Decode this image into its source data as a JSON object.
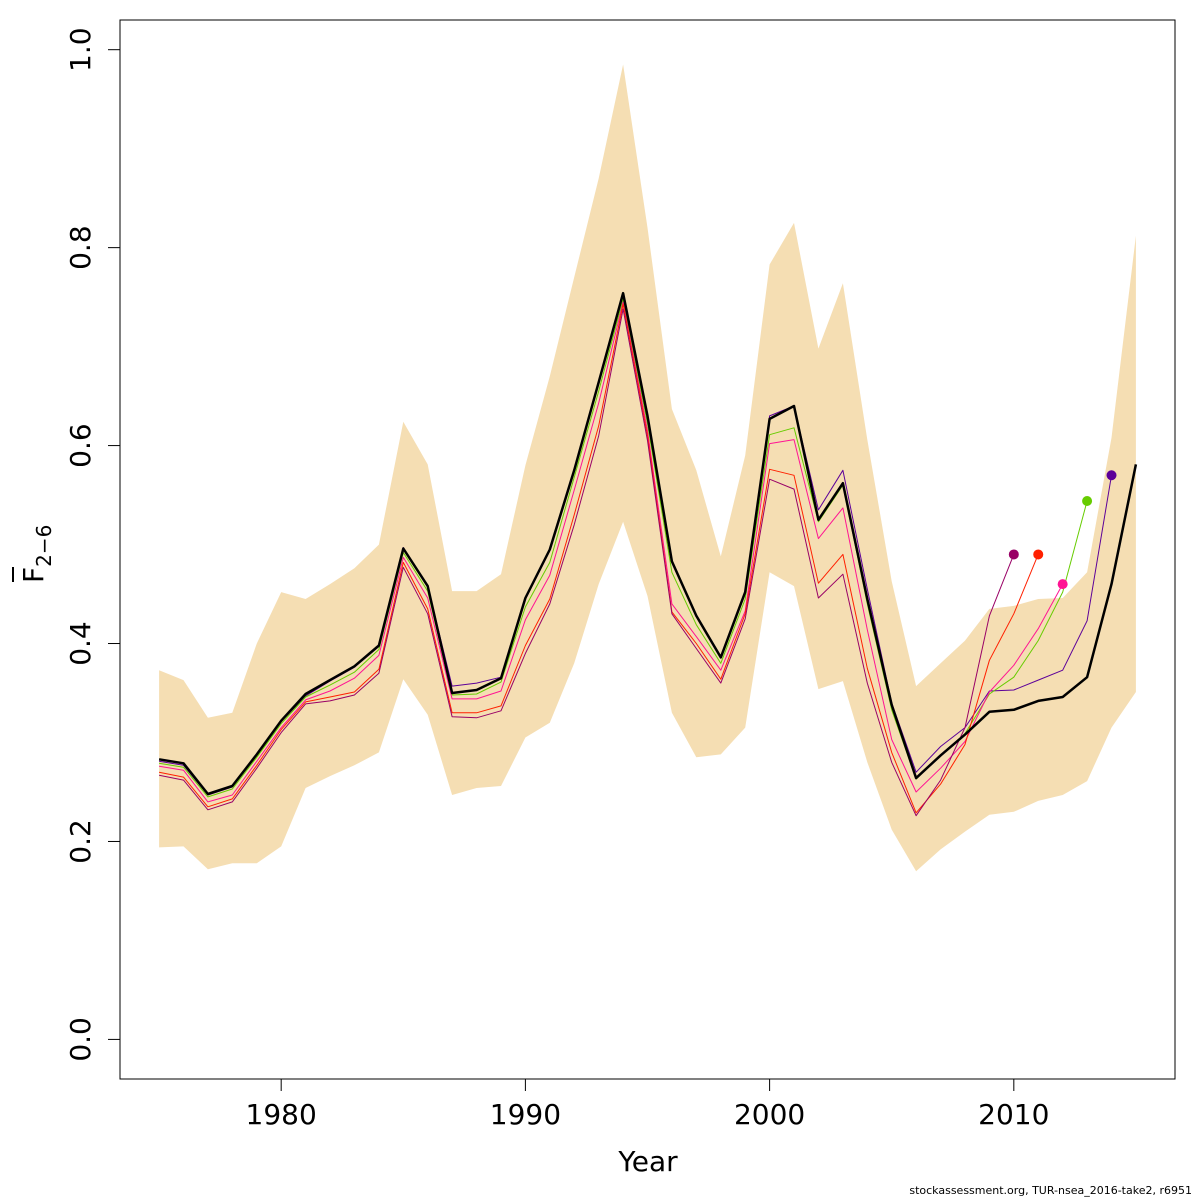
{
  "chart_data": {
    "type": "line",
    "title": "",
    "xlabel": "Year",
    "ylabel_main": "F",
    "ylabel_sub": "2−6",
    "xlim": [
      1973.4,
      2016.6
    ],
    "ylim": [
      -0.04,
      1.03
    ],
    "xticks": [
      1980,
      1990,
      2000,
      2010
    ],
    "yticks": [
      0.0,
      0.2,
      0.4,
      0.6,
      0.8,
      1.0
    ],
    "ytick_labels": [
      "0.0",
      "0.2",
      "0.4",
      "0.6",
      "0.8",
      "1.0"
    ],
    "grid": false,
    "band": {
      "color": "#f5deb3",
      "x": [
        1975,
        1976,
        1977,
        1978,
        1979,
        1980,
        1981,
        1982,
        1983,
        1984,
        1985,
        1986,
        1987,
        1988,
        1989,
        1990,
        1991,
        1992,
        1993,
        1994,
        1995,
        1996,
        1997,
        1998,
        1999,
        2000,
        2001,
        2002,
        2003,
        2004,
        2005,
        2006,
        2007,
        2008,
        2009,
        2010,
        2011,
        2012,
        2013,
        2014,
        2015
      ],
      "upper": [
        0.373,
        0.363,
        0.325,
        0.33,
        0.4,
        0.452,
        0.445,
        0.46,
        0.476,
        0.5,
        0.624,
        0.581,
        0.453,
        0.453,
        0.47,
        0.58,
        0.67,
        0.77,
        0.87,
        0.985,
        0.82,
        0.637,
        0.575,
        0.488,
        0.59,
        0.783,
        0.825,
        0.698,
        0.764,
        0.606,
        0.463,
        0.357,
        0.38,
        0.403,
        0.435,
        0.438,
        0.445,
        0.446,
        0.472,
        0.608,
        0.812
      ],
      "lower": [
        0.194,
        0.195,
        0.172,
        0.178,
        0.178,
        0.195,
        0.254,
        0.266,
        0.277,
        0.29,
        0.364,
        0.328,
        0.247,
        0.254,
        0.256,
        0.305,
        0.32,
        0.38,
        0.46,
        0.523,
        0.448,
        0.33,
        0.285,
        0.288,
        0.315,
        0.472,
        0.458,
        0.354,
        0.362,
        0.28,
        0.212,
        0.17,
        0.192,
        0.21,
        0.227,
        0.23,
        0.241,
        0.247,
        0.261,
        0.315,
        0.351
      ]
    },
    "series": [
      {
        "color": "#000000",
        "width": 2.5,
        "end_point": false,
        "x": [
          1975,
          1976,
          1977,
          1978,
          1979,
          1980,
          1981,
          1982,
          1983,
          1984,
          1985,
          1986,
          1987,
          1988,
          1989,
          1990,
          1991,
          1992,
          1993,
          1994,
          1995,
          1996,
          1997,
          1998,
          1999,
          2000,
          2001,
          2002,
          2003,
          2004,
          2005,
          2006,
          2007,
          2008,
          2009,
          2010,
          2011,
          2012,
          2013,
          2014,
          2015
        ],
        "values": [
          0.283,
          0.279,
          0.248,
          0.256,
          0.288,
          0.322,
          0.349,
          0.363,
          0.377,
          0.398,
          0.496,
          0.458,
          0.35,
          0.353,
          0.365,
          0.446,
          0.495,
          0.575,
          0.664,
          0.754,
          0.63,
          0.483,
          0.428,
          0.386,
          0.452,
          0.627,
          0.64,
          0.525,
          0.562,
          0.445,
          0.338,
          0.264,
          0.287,
          0.308,
          0.331,
          0.333,
          0.342,
          0.346,
          0.366,
          0.46,
          0.581
        ]
      },
      {
        "color": "#5c0099",
        "width": 1,
        "end_point": true,
        "x": [
          1975,
          1976,
          1977,
          1978,
          1979,
          1980,
          1981,
          1982,
          1983,
          1984,
          1985,
          1986,
          1987,
          1988,
          1989,
          1990,
          1991,
          1992,
          1993,
          1994,
          1995,
          1996,
          1997,
          1998,
          1999,
          2000,
          2001,
          2002,
          2003,
          2004,
          2005,
          2006,
          2007,
          2008,
          2009,
          2010,
          2011,
          2012,
          2013,
          2014
        ],
        "values": [
          0.281,
          0.277,
          0.247,
          0.255,
          0.287,
          0.321,
          0.347,
          0.362,
          0.376,
          0.397,
          0.497,
          0.458,
          0.357,
          0.36,
          0.366,
          0.446,
          0.494,
          0.574,
          0.663,
          0.753,
          0.631,
          0.484,
          0.429,
          0.387,
          0.452,
          0.63,
          0.64,
          0.535,
          0.575,
          0.455,
          0.34,
          0.27,
          0.296,
          0.315,
          0.352,
          0.353,
          0.363,
          0.373,
          0.423,
          0.57
        ]
      },
      {
        "color": "#66cc00",
        "width": 1,
        "end_point": true,
        "x": [
          1975,
          1976,
          1977,
          1978,
          1979,
          1980,
          1981,
          1982,
          1983,
          1984,
          1985,
          1986,
          1987,
          1988,
          1989,
          1990,
          1991,
          1992,
          1993,
          1994,
          1995,
          1996,
          1997,
          1998,
          1999,
          2000,
          2001,
          2002,
          2003,
          2004,
          2005,
          2006,
          2007,
          2008,
          2009,
          2010,
          2011,
          2012,
          2013
        ],
        "values": [
          0.279,
          0.275,
          0.245,
          0.253,
          0.285,
          0.319,
          0.346,
          0.358,
          0.371,
          0.394,
          0.492,
          0.453,
          0.348,
          0.349,
          0.361,
          0.437,
          0.482,
          0.568,
          0.655,
          0.748,
          0.622,
          0.472,
          0.419,
          0.38,
          0.445,
          0.611,
          0.618,
          0.523,
          0.56,
          0.44,
          0.333,
          0.263,
          0.287,
          0.309,
          0.349,
          0.366,
          0.403,
          0.452,
          0.544
        ]
      },
      {
        "color": "#ff1493",
        "width": 1,
        "end_point": true,
        "x": [
          1975,
          1976,
          1977,
          1978,
          1979,
          1980,
          1981,
          1982,
          1983,
          1984,
          1985,
          1986,
          1987,
          1988,
          1989,
          1990,
          1991,
          1992,
          1993,
          1994,
          1995,
          1996,
          1997,
          1998,
          1999,
          2000,
          2001,
          2002,
          2003,
          2004,
          2005,
          2006,
          2007,
          2008,
          2009,
          2010,
          2011,
          2012
        ],
        "values": [
          0.276,
          0.272,
          0.24,
          0.247,
          0.281,
          0.315,
          0.343,
          0.352,
          0.365,
          0.388,
          0.487,
          0.446,
          0.344,
          0.344,
          0.352,
          0.424,
          0.469,
          0.555,
          0.643,
          0.745,
          0.615,
          0.44,
          0.407,
          0.373,
          0.433,
          0.602,
          0.606,
          0.506,
          0.537,
          0.414,
          0.303,
          0.25,
          0.274,
          0.301,
          0.351,
          0.378,
          0.415,
          0.46
        ]
      },
      {
        "color": "#ff2000",
        "width": 1,
        "end_point": true,
        "x": [
          1975,
          1976,
          1977,
          1978,
          1979,
          1980,
          1981,
          1982,
          1983,
          1984,
          1985,
          1986,
          1987,
          1988,
          1989,
          1990,
          1991,
          1992,
          1993,
          1994,
          1995,
          1996,
          1997,
          1998,
          1999,
          2000,
          2001,
          2002,
          2003,
          2004,
          2005,
          2006,
          2007,
          2008,
          2009,
          2010,
          2011
        ],
        "values": [
          0.27,
          0.265,
          0.235,
          0.243,
          0.277,
          0.313,
          0.341,
          0.346,
          0.351,
          0.374,
          0.482,
          0.435,
          0.33,
          0.33,
          0.337,
          0.398,
          0.445,
          0.53,
          0.62,
          0.743,
          0.61,
          0.432,
          0.4,
          0.364,
          0.43,
          0.576,
          0.57,
          0.461,
          0.49,
          0.375,
          0.29,
          0.229,
          0.258,
          0.298,
          0.383,
          0.43,
          0.49
        ]
      },
      {
        "color": "#990066",
        "width": 1,
        "end_point": true,
        "x": [
          1975,
          1976,
          1977,
          1978,
          1979,
          1980,
          1981,
          1982,
          1983,
          1984,
          1985,
          1986,
          1987,
          1988,
          1989,
          1990,
          1991,
          1992,
          1993,
          1994,
          1995,
          1996,
          1997,
          1998,
          1999,
          2000,
          2001,
          2002,
          2003,
          2004,
          2005,
          2006,
          2007,
          2008,
          2009,
          2010
        ],
        "values": [
          0.267,
          0.262,
          0.232,
          0.24,
          0.274,
          0.31,
          0.339,
          0.342,
          0.348,
          0.37,
          0.477,
          0.43,
          0.326,
          0.325,
          0.332,
          0.39,
          0.44,
          0.52,
          0.61,
          0.738,
          0.605,
          0.43,
          0.395,
          0.36,
          0.425,
          0.566,
          0.556,
          0.446,
          0.47,
          0.36,
          0.28,
          0.226,
          0.262,
          0.315,
          0.428,
          0.49
        ]
      }
    ]
  },
  "footer_text": "stockassessment.org, TUR-nsea_2016-take2, r6951"
}
